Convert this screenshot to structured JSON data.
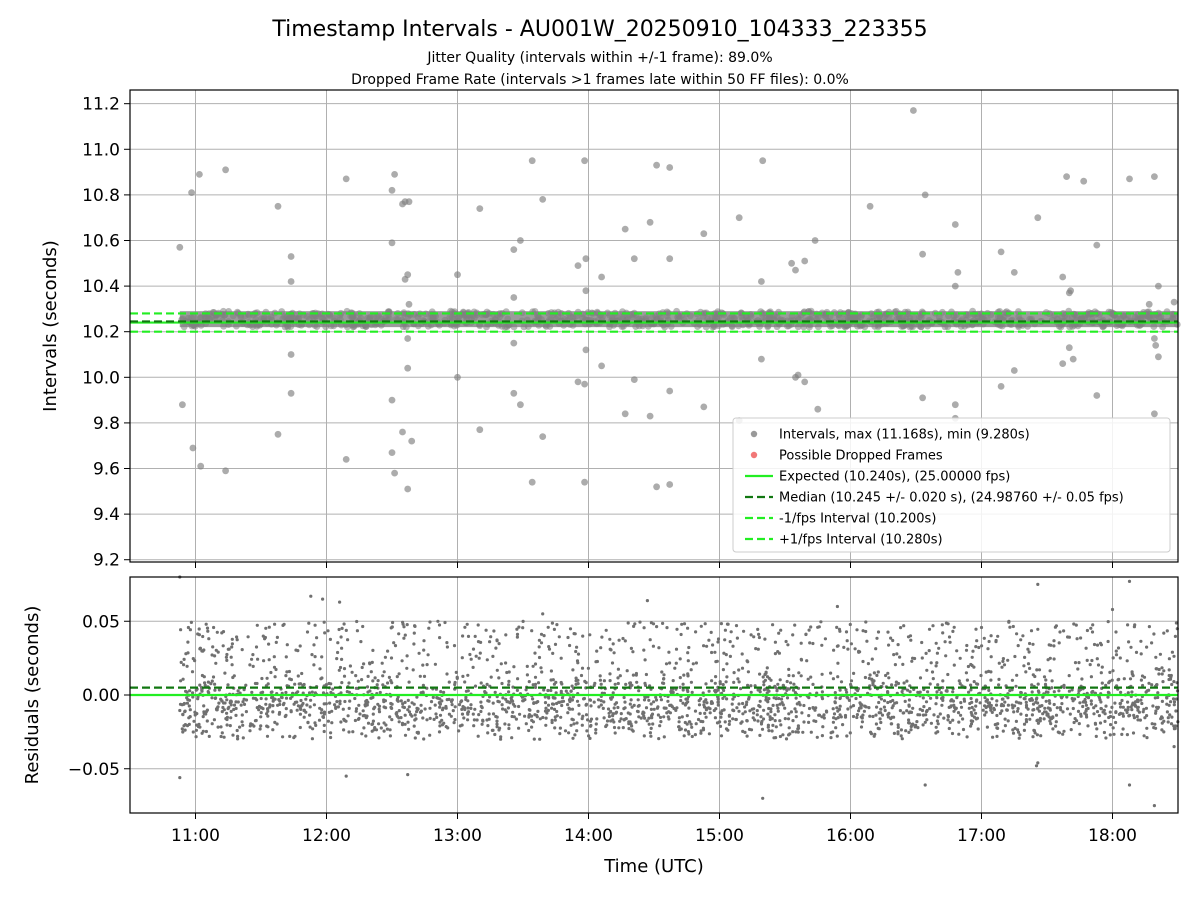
{
  "chart_data": [
    {
      "type": "scatter",
      "title": "Timestamp Intervals - AU001W_20250910_104333_223355",
      "subtitle_lines": [
        "Jitter Quality (intervals within +/-1 frame): 89.0%",
        "Dropped Frame Rate (intervals >1 frames late within 50 FF files): 0.0%"
      ],
      "xlabel": "",
      "ylabel": "Intervals (seconds)",
      "x_time_range_hours": [
        10.5,
        18.5
      ],
      "ylim": [
        9.19,
        11.26
      ],
      "yticks": [
        9.2,
        9.4,
        9.6,
        9.8,
        10.0,
        10.2,
        10.4,
        10.6,
        10.8,
        11.0,
        11.2
      ],
      "ytick_labels": [
        "9.2",
        "9.4",
        "9.6",
        "9.8",
        "10.0",
        "10.2",
        "10.4",
        "10.6",
        "10.8",
        "11.0",
        "11.2"
      ],
      "data_time_range_hours": [
        10.88,
        18.5
      ],
      "grid": true,
      "legend_position": "lower-right",
      "series": [
        {
          "key": "intervals",
          "kind": "points",
          "name": "Intervals, max (11.168s), min (9.280s)",
          "color": "#808080",
          "max": 11.168,
          "min": 9.28,
          "core_band": [
            10.22,
            10.29
          ],
          "outliers": [
            [
              10.88,
              10.57
            ],
            [
              10.9,
              9.88
            ],
            [
              10.97,
              10.81
            ],
            [
              10.98,
              9.69
            ],
            [
              11.03,
              10.89
            ],
            [
              11.04,
              9.61
            ],
            [
              11.23,
              10.91
            ],
            [
              11.23,
              9.59
            ],
            [
              11.63,
              10.75
            ],
            [
              11.63,
              9.75
            ],
            [
              11.73,
              10.53
            ],
            [
              11.73,
              10.42
            ],
            [
              11.73,
              10.1
            ],
            [
              11.73,
              9.93
            ],
            [
              12.15,
              10.87
            ],
            [
              12.15,
              9.64
            ],
            [
              12.5,
              10.82
            ],
            [
              12.52,
              10.89
            ],
            [
              12.5,
              10.59
            ],
            [
              12.5,
              9.9
            ],
            [
              12.5,
              9.67
            ],
            [
              12.52,
              9.58
            ],
            [
              12.58,
              10.76
            ],
            [
              12.6,
              10.77
            ],
            [
              12.63,
              10.77
            ],
            [
              12.6,
              10.43
            ],
            [
              12.62,
              10.45
            ],
            [
              12.63,
              10.32
            ],
            [
              12.62,
              10.17
            ],
            [
              12.62,
              10.04
            ],
            [
              12.58,
              9.76
            ],
            [
              12.65,
              9.72
            ],
            [
              12.62,
              9.51
            ],
            [
              13.0,
              10.45
            ],
            [
              13.0,
              10.0
            ],
            [
              13.17,
              10.74
            ],
            [
              13.17,
              9.77
            ],
            [
              13.43,
              10.56
            ],
            [
              13.43,
              10.35
            ],
            [
              13.43,
              10.15
            ],
            [
              13.43,
              9.93
            ],
            [
              13.48,
              10.6
            ],
            [
              13.48,
              9.88
            ],
            [
              13.57,
              10.95
            ],
            [
              13.57,
              9.54
            ],
            [
              13.65,
              10.78
            ],
            [
              13.65,
              9.74
            ],
            [
              13.92,
              10.49
            ],
            [
              13.92,
              9.98
            ],
            [
              13.97,
              10.95
            ],
            [
              13.98,
              10.52
            ],
            [
              13.98,
              10.38
            ],
            [
              13.98,
              10.12
            ],
            [
              13.97,
              9.97
            ],
            [
              13.97,
              9.54
            ],
            [
              14.1,
              10.44
            ],
            [
              14.1,
              10.05
            ],
            [
              14.28,
              10.65
            ],
            [
              14.28,
              9.84
            ],
            [
              14.35,
              10.52
            ],
            [
              14.35,
              9.99
            ],
            [
              14.47,
              10.68
            ],
            [
              14.47,
              9.83
            ],
            [
              14.52,
              10.93
            ],
            [
              14.52,
              9.52
            ],
            [
              14.62,
              10.92
            ],
            [
              14.62,
              10.52
            ],
            [
              14.62,
              9.94
            ],
            [
              14.62,
              9.53
            ],
            [
              14.88,
              10.63
            ],
            [
              14.88,
              9.87
            ],
            [
              15.15,
              10.7
            ],
            [
              15.15,
              9.81
            ],
            [
              15.33,
              10.95
            ],
            [
              15.32,
              10.42
            ],
            [
              15.32,
              10.08
            ],
            [
              15.55,
              10.5
            ],
            [
              15.58,
              10.47
            ],
            [
              15.65,
              10.51
            ],
            [
              15.58,
              10.0
            ],
            [
              15.6,
              10.01
            ],
            [
              15.65,
              9.98
            ],
            [
              15.73,
              10.6
            ],
            [
              15.75,
              9.86
            ],
            [
              16.15,
              10.75
            ],
            [
              16.48,
              11.17
            ],
            [
              16.57,
              10.8
            ],
            [
              16.55,
              10.54
            ],
            [
              16.55,
              9.91
            ],
            [
              16.8,
              10.67
            ],
            [
              16.82,
              10.46
            ],
            [
              16.8,
              10.4
            ],
            [
              16.8,
              9.88
            ],
            [
              16.8,
              9.82
            ],
            [
              17.15,
              10.55
            ],
            [
              17.15,
              9.96
            ],
            [
              17.25,
              10.46
            ],
            [
              17.25,
              10.03
            ],
            [
              17.43,
              10.7
            ],
            [
              17.62,
              10.44
            ],
            [
              17.65,
              10.88
            ],
            [
              17.67,
              10.37
            ],
            [
              17.68,
              10.38
            ],
            [
              17.62,
              10.06
            ],
            [
              17.67,
              10.13
            ],
            [
              17.7,
              10.08
            ],
            [
              17.78,
              10.86
            ],
            [
              17.88,
              10.58
            ],
            [
              17.88,
              9.92
            ],
            [
              18.13,
              10.87
            ],
            [
              18.28,
              10.32
            ],
            [
              18.32,
              10.88
            ],
            [
              18.32,
              10.17
            ],
            [
              18.33,
              10.14
            ],
            [
              18.35,
              10.4
            ],
            [
              18.35,
              10.09
            ],
            [
              18.32,
              9.84
            ],
            [
              18.47,
              10.33
            ]
          ]
        },
        {
          "key": "dropped",
          "kind": "points",
          "name": "Possible Dropped Frames",
          "color": "#ee5555",
          "points": []
        },
        {
          "key": "expected",
          "kind": "hline",
          "name": "Expected (10.240s), (25.00000 fps)",
          "color": "#22ee22",
          "style": "solid",
          "value": 10.24,
          "fps": 25.0
        },
        {
          "key": "median",
          "kind": "hline",
          "name": "Median (10.245 +/- 0.020 s), (24.98760 +/- 0.05 fps)",
          "color": "#117711",
          "style": "dashed",
          "value": 10.245,
          "spread": 0.02,
          "fps": 24.9876,
          "fps_spread": 0.05
        },
        {
          "key": "minus_fps",
          "kind": "hline",
          "name": "-1/fps Interval (10.200s)",
          "color": "#22ee22",
          "style": "dashed",
          "value": 10.2
        },
        {
          "key": "plus_fps",
          "kind": "hline",
          "name": "+1/fps Interval (10.280s)",
          "color": "#22ee22",
          "style": "dashed",
          "value": 10.28
        }
      ]
    },
    {
      "type": "scatter",
      "title": "",
      "xlabel": "Time (UTC)",
      "ylabel": "Residuals (seconds)",
      "x_time_range_hours": [
        10.5,
        18.5
      ],
      "xticks": [
        11,
        12,
        13,
        14,
        15,
        16,
        17,
        18
      ],
      "xtick_labels": [
        "11:00",
        "12:00",
        "13:00",
        "14:00",
        "15:00",
        "16:00",
        "17:00",
        "18:00"
      ],
      "ylim": [
        -0.08,
        0.08
      ],
      "yticks": [
        -0.05,
        0.0,
        0.05
      ],
      "ytick_labels": [
        "−0.05",
        "0.00",
        "0.05"
      ],
      "grid": true,
      "series": [
        {
          "key": "residuals",
          "kind": "points",
          "color": "#707070",
          "core_range": [
            -0.03,
            0.05
          ],
          "count_approx": 2700,
          "outliers": [
            [
              10.88,
              0.08
            ],
            [
              10.88,
              -0.056
            ],
            [
              12.15,
              -0.055
            ],
            [
              11.88,
              0.067
            ],
            [
              11.97,
              0.065
            ],
            [
              12.1,
              0.063
            ],
            [
              12.62,
              -0.054
            ],
            [
              14.45,
              0.064
            ],
            [
              15.33,
              -0.07
            ],
            [
              16.57,
              -0.061
            ],
            [
              17.43,
              -0.046
            ],
            [
              17.42,
              -0.048
            ],
            [
              17.43,
              0.075
            ],
            [
              18.13,
              0.077
            ],
            [
              18.13,
              -0.061
            ],
            [
              18.32,
              -0.075
            ],
            [
              18.47,
              -0.035
            ],
            [
              18.0,
              0.058
            ],
            [
              15.9,
              0.06
            ],
            [
              13.65,
              0.055
            ]
          ]
        },
        {
          "key": "zero",
          "kind": "hline",
          "color": "#22ee22",
          "style": "solid",
          "value": 0.0
        },
        {
          "key": "median_offset",
          "kind": "hline",
          "color": "#117711",
          "style": "dashed",
          "value": 0.005
        }
      ]
    }
  ]
}
